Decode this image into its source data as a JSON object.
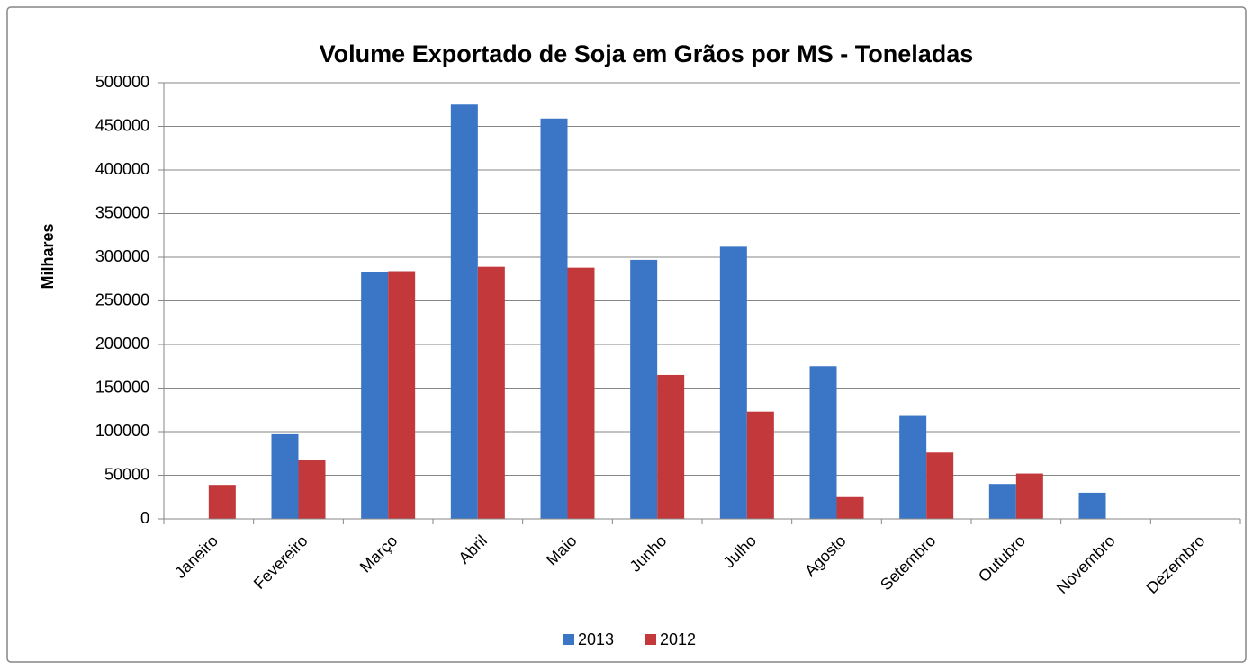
{
  "chart_data": {
    "type": "bar",
    "title": "Volume Exportado de Soja em Grãos por MS - Toneladas",
    "y_label": "Milhares",
    "categories": [
      "Janeiro",
      "Fevereiro",
      "Março",
      "Abril",
      "Maio",
      "Junho",
      "Julho",
      "Agosto",
      "Setembro",
      "Outubro",
      "Novembro",
      "Dezembro"
    ],
    "series": [
      {
        "name": "2013",
        "color": "#3b76c6",
        "values": [
          null,
          97000,
          283000,
          475000,
          459000,
          297000,
          312000,
          175000,
          118000,
          40000,
          30000,
          null
        ]
      },
      {
        "name": "2012",
        "color": "#c3383a",
        "values": [
          39000,
          67000,
          284000,
          289000,
          288000,
          165000,
          123000,
          25000,
          76000,
          52000,
          null,
          null
        ]
      }
    ],
    "ylim": [
      0,
      500000
    ],
    "yticks": [
      0,
      50000,
      100000,
      150000,
      200000,
      250000,
      300000,
      350000,
      400000,
      450000,
      500000
    ],
    "grid": true,
    "legend": "bottom"
  }
}
